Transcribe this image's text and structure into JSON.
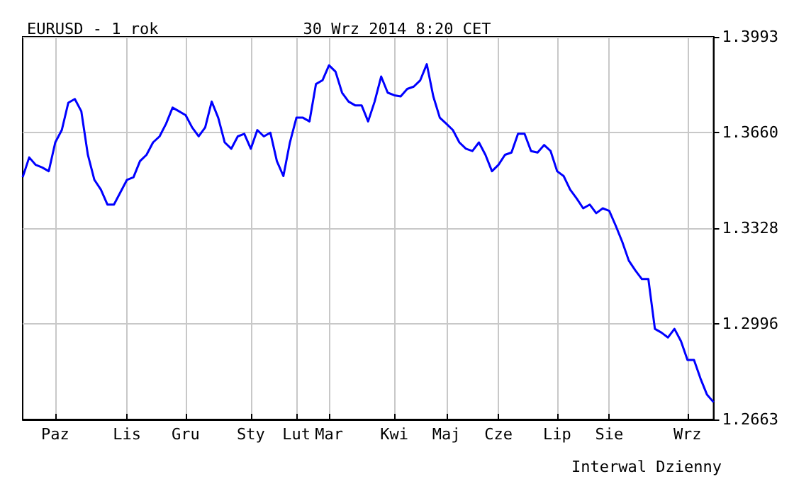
{
  "chart_data": {
    "type": "line",
    "title": "EURUSD - 1 rok",
    "subtitle": "30 Wrz 2014 8:20 CET",
    "annotations": [
      "Interwal Dzienny"
    ],
    "categories": [
      null,
      null,
      null,
      null,
      null,
      "Paz",
      null,
      null,
      null,
      null,
      null,
      null,
      null,
      null,
      null,
      null,
      "Lis",
      null,
      null,
      null,
      null,
      null,
      null,
      null,
      null,
      "Gru",
      null,
      null,
      null,
      null,
      null,
      null,
      null,
      null,
      null,
      "Sty",
      null,
      null,
      null,
      null,
      null,
      null,
      "Lut",
      null,
      null,
      null,
      null,
      "Mar",
      null,
      null,
      null,
      null,
      null,
      null,
      null,
      null,
      null,
      "Kwi",
      null,
      null,
      null,
      null,
      null,
      null,
      null,
      "Maj",
      null,
      null,
      null,
      null,
      null,
      null,
      null,
      "Cze",
      null,
      null,
      null,
      null,
      null,
      null,
      null,
      null,
      "Lip",
      null,
      null,
      null,
      null,
      null,
      null,
      null,
      "Sie",
      null,
      null,
      null,
      null,
      null,
      null,
      null,
      null,
      null,
      null,
      null,
      "Wrz",
      null,
      null,
      null,
      null
    ],
    "series": [
      {
        "color": "#0000ff",
        "values": [
          1.3505,
          1.3574,
          1.3548,
          1.3539,
          1.3526,
          1.3626,
          1.3669,
          1.3764,
          1.3777,
          1.3734,
          1.3583,
          1.3496,
          1.3462,
          1.341,
          1.341,
          1.3453,
          1.3496,
          1.3505,
          1.3561,
          1.3583,
          1.3626,
          1.3647,
          1.3691,
          1.3747,
          1.3734,
          1.3721,
          1.3678,
          1.3647,
          1.3678,
          1.3768,
          1.3712,
          1.3626,
          1.3604,
          1.3647,
          1.3656,
          1.3604,
          1.3669,
          1.3647,
          1.366,
          1.3561,
          1.3509,
          1.3626,
          1.3712,
          1.3712,
          1.3699,
          1.3829,
          1.3842,
          1.3894,
          1.3872,
          1.3799,
          1.3768,
          1.3755,
          1.3755,
          1.3699,
          1.3768,
          1.3855,
          1.3799,
          1.379,
          1.3786,
          1.3812,
          1.382,
          1.3842,
          1.3898,
          1.3786,
          1.3712,
          1.3691,
          1.3669,
          1.3626,
          1.3604,
          1.3596,
          1.3626,
          1.3583,
          1.3526,
          1.3548,
          1.3583,
          1.3591,
          1.3656,
          1.3656,
          1.3596,
          1.3591,
          1.3617,
          1.3596,
          1.3526,
          1.3509,
          1.3462,
          1.3431,
          1.3397,
          1.341,
          1.338,
          1.3397,
          1.3388,
          1.3336,
          1.328,
          1.3215,
          1.3181,
          1.3151,
          1.3151,
          1.2978,
          1.2965,
          1.2948,
          1.2978,
          1.2935,
          1.287,
          1.287,
          1.2805,
          1.2749,
          1.2723
        ]
      }
    ],
    "ylim": [
      1.2663,
      1.3993
    ],
    "yticks": [
      1.2663,
      1.2996,
      1.3328,
      {
        "value": 1.366,
        "label": "1.3660"
      },
      1.3993
    ],
    "grid": true,
    "line_style": "solid",
    "marker": "none"
  }
}
